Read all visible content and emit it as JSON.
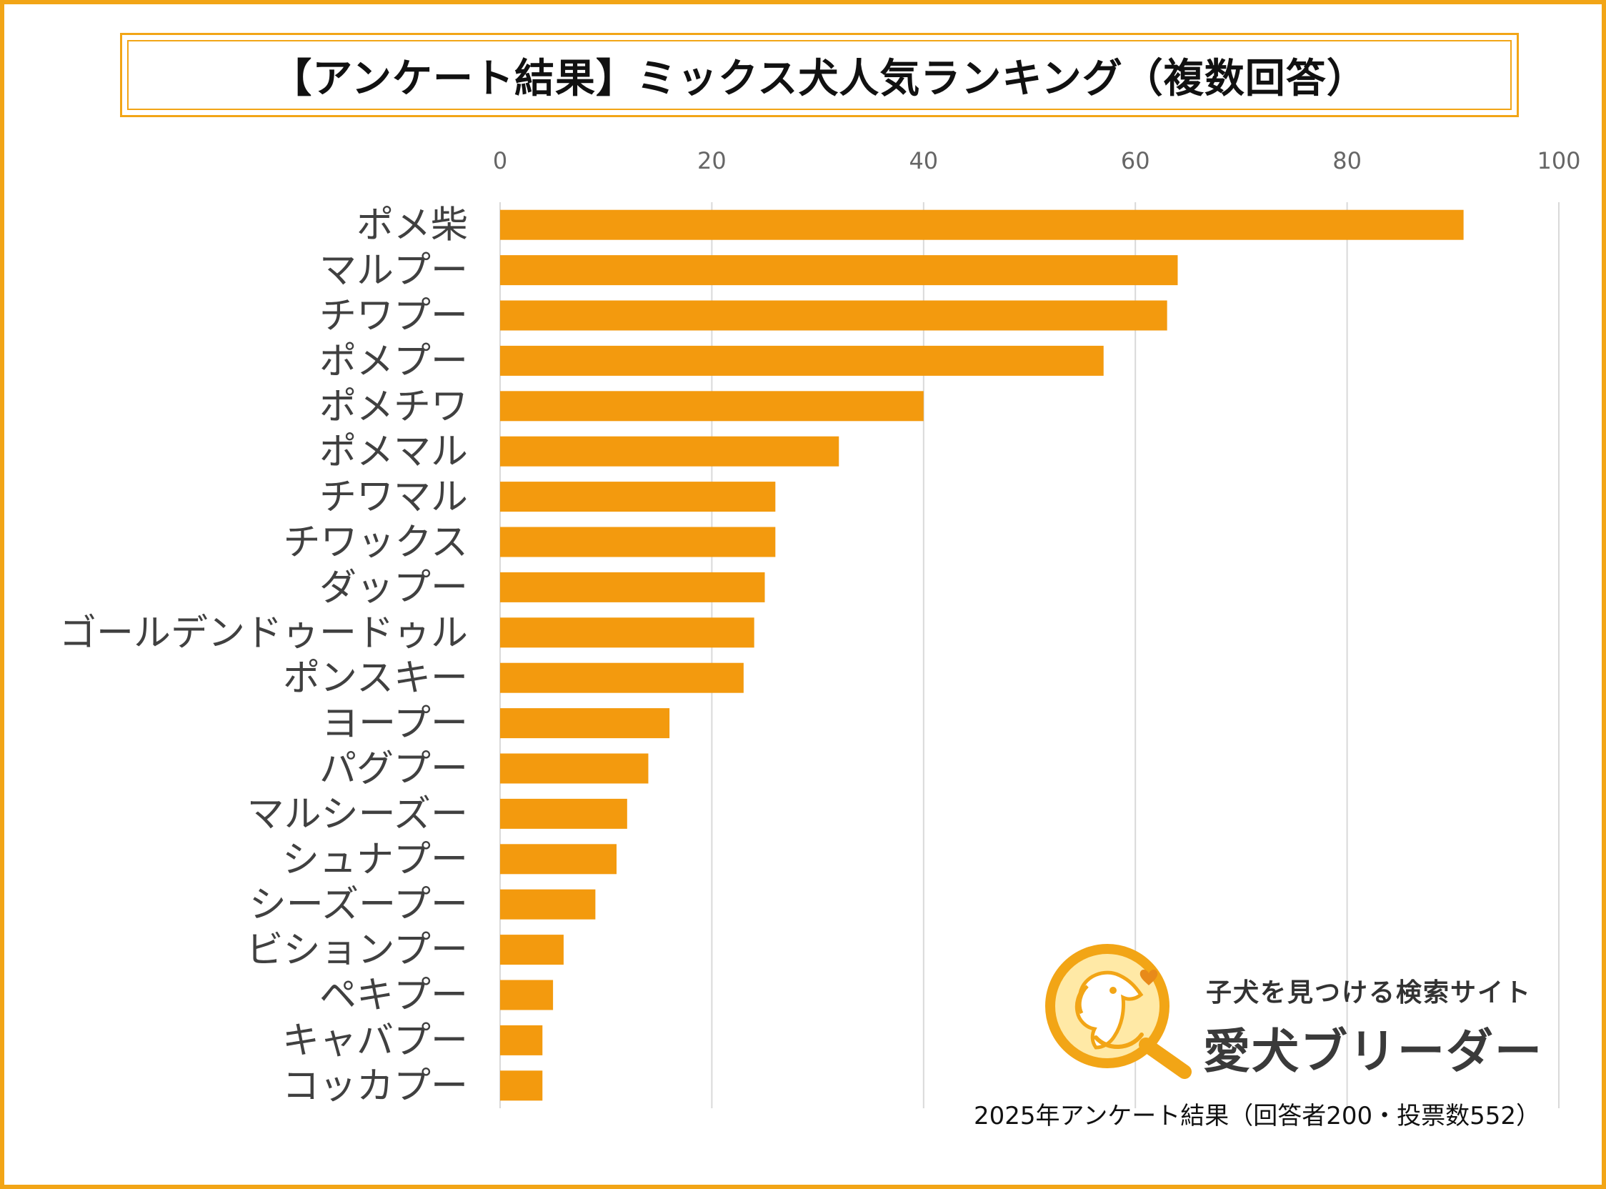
{
  "title": "【アンケート結果】ミックス犬人気ランキング（複数回答）",
  "footnote": "2025年アンケート結果（回答者200・投票数552）",
  "logo": {
    "tagline": "子犬を見つける検索サイト",
    "name": "愛犬ブリーダー"
  },
  "colors": {
    "bar": "#F39A0E",
    "frame": "#F2A516",
    "grid": "#D9D9D9"
  },
  "chart_data": {
    "type": "bar",
    "orientation": "horizontal",
    "categories": [
      "ポメ柴",
      "マルプー",
      "チワプー",
      "ポメプー",
      "ポメチワ",
      "ポメマル",
      "チワマル",
      "チワックス",
      "ダップー",
      "ゴールデンドゥードゥル",
      "ポンスキー",
      "ヨープー",
      "パグプー",
      "マルシーズー",
      "シュナプー",
      "シーズープー",
      "ビションプー",
      "ペキプー",
      "キャバプー",
      "コッカプー"
    ],
    "values": [
      91,
      64,
      63,
      57,
      40,
      32,
      26,
      26,
      25,
      24,
      23,
      16,
      14,
      12,
      11,
      9,
      6,
      5,
      4,
      4
    ],
    "xlim": [
      0,
      100
    ],
    "xticks": [
      "0",
      "20",
      "40",
      "60",
      "80",
      "100"
    ],
    "x_axis_position": "top",
    "grid": true,
    "legend": "none"
  }
}
